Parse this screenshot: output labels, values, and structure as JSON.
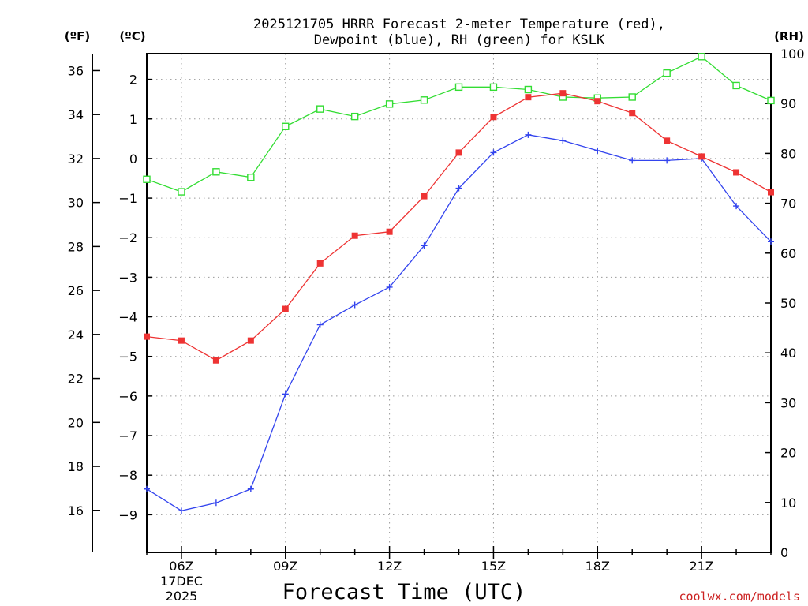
{
  "chart_data": {
    "type": "line",
    "title_line1": "2025121705 HRRR Forecast 2-meter Temperature (red),",
    "title_line2": "Dewpoint (blue), RH (green) for KSLK",
    "xlabel": "Forecast Time (UTC)",
    "credit": "coolwx.com/models",
    "unit_f": "(ºF)",
    "unit_c": "(ºC)",
    "unit_rh": "(RH)",
    "date_label": [
      "17DEC",
      "2025"
    ],
    "x_hours": [
      5,
      6,
      7,
      8,
      9,
      10,
      11,
      12,
      13,
      14,
      15,
      16,
      17,
      18,
      19,
      20,
      21,
      22,
      23
    ],
    "x_ticks": [
      {
        "hour": 6,
        "label": "06Z"
      },
      {
        "hour": 9,
        "label": "09Z"
      },
      {
        "hour": 12,
        "label": "12Z"
      },
      {
        "hour": 15,
        "label": "15Z"
      },
      {
        "hour": 18,
        "label": "18Z"
      },
      {
        "hour": 21,
        "label": "21Z"
      }
    ],
    "x_range": [
      5,
      23
    ],
    "celsius_range": [
      -9.95,
      2.65
    ],
    "celsius_ticks": [
      2,
      1,
      0,
      -1,
      -2,
      -3,
      -4,
      -5,
      -6,
      -7,
      -8,
      -9
    ],
    "fahrenheit_ticks": [
      36,
      34,
      32,
      30,
      28,
      26,
      24,
      22,
      20,
      18,
      16
    ],
    "rh_range": [
      0,
      100
    ],
    "rh_ticks": [
      0,
      10,
      20,
      30,
      40,
      50,
      60,
      70,
      80,
      90,
      100
    ],
    "series": [
      {
        "name": "2-meter Temperature",
        "axis": "celsius",
        "color": "#ee3333",
        "marker": "filled-square",
        "values": [
          -4.5,
          -4.6,
          -5.1,
          -4.6,
          -3.8,
          -2.65,
          -1.95,
          -1.85,
          -0.95,
          0.15,
          1.05,
          1.55,
          1.65,
          1.45,
          1.15,
          0.45,
          0.05,
          -0.35,
          -0.85
        ]
      },
      {
        "name": "Dewpoint",
        "axis": "celsius",
        "color": "#3344ee",
        "marker": "plus",
        "values": [
          -8.35,
          -8.9,
          -8.7,
          -8.35,
          -5.95,
          -4.2,
          -3.7,
          -3.25,
          -2.2,
          -0.75,
          0.15,
          0.6,
          0.45,
          0.2,
          -0.05,
          -0.05,
          0.0,
          -1.2,
          -2.1
        ]
      },
      {
        "name": "RH",
        "axis": "rh",
        "color": "#33dd33",
        "marker": "open-square",
        "values": [
          74.8,
          72.3,
          76.3,
          75.2,
          85.4,
          88.9,
          87.4,
          89.9,
          90.7,
          93.3,
          93.3,
          92.8,
          91.3,
          91.1,
          91.3,
          96.1,
          99.4,
          93.6,
          90.6
        ]
      }
    ]
  }
}
